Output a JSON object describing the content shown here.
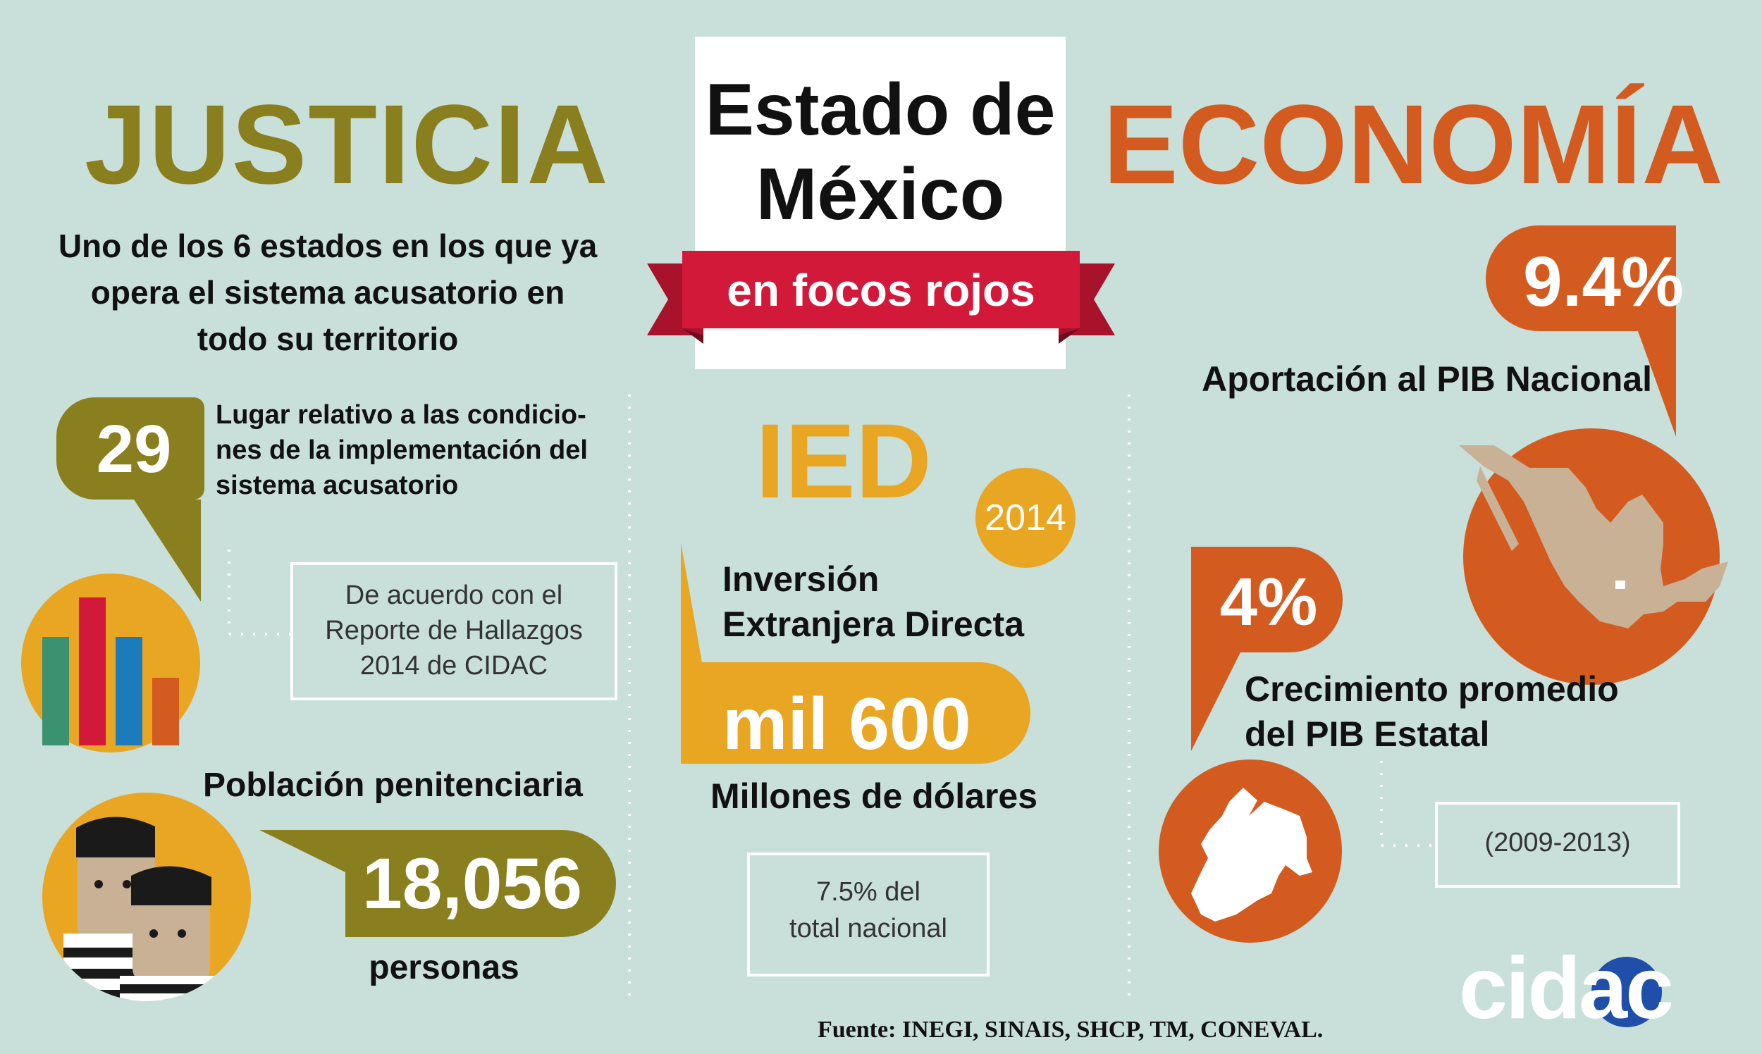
{
  "colors": {
    "bg": "#c9dfd9",
    "olive": "#8a7f1f",
    "orange": "#d45b1f",
    "gold": "#e8a623",
    "red": "#d3193a",
    "white": "#ffffff"
  },
  "title": {
    "line1": "Estado de",
    "line2": "México",
    "ribbon": "en focos rojos"
  },
  "justicia": {
    "heading": "JUSTICIA",
    "intro": [
      "Uno de los 6 estados en los que ya",
      "opera el sistema acusatorio en",
      "todo su territorio"
    ],
    "rank": {
      "value": "29",
      "text": [
        "Lugar relativo a las condicio-",
        "nes de la implementación del",
        "sistema acusatorio"
      ]
    },
    "source_box": [
      "De acuerdo con el",
      "Reporte de Hallazgos",
      "2014 de CIDAC"
    ],
    "poblacion": {
      "label": "Población penitenciaria",
      "value": "18,056",
      "unit": "personas"
    },
    "icons": {
      "chart": "bar-chart-icon",
      "prisoners": "prisoners-icon"
    }
  },
  "ied": {
    "heading": "IED",
    "year": "2014",
    "label": [
      "Inversión",
      "Extranjera Directa"
    ],
    "value": "mil 600",
    "unit": "Millones de dólares",
    "share": [
      "7.5% del",
      "total nacional"
    ]
  },
  "economia": {
    "heading": "ECONOMÍA",
    "pib_share": {
      "value": "9.4%",
      "label": "Aportación al PIB Nacional"
    },
    "growth": {
      "value": "4%",
      "label": [
        "Crecimiento promedio",
        "del PIB Estatal"
      ],
      "period": "(2009-2013)"
    },
    "icons": {
      "mexico": "mexico-map-icon",
      "state": "edomex-map-icon"
    }
  },
  "footer": {
    "source": "Fuente: INEGI, SINAIS, SHCP, TM, CONEVAL.",
    "logo": "cidac"
  }
}
